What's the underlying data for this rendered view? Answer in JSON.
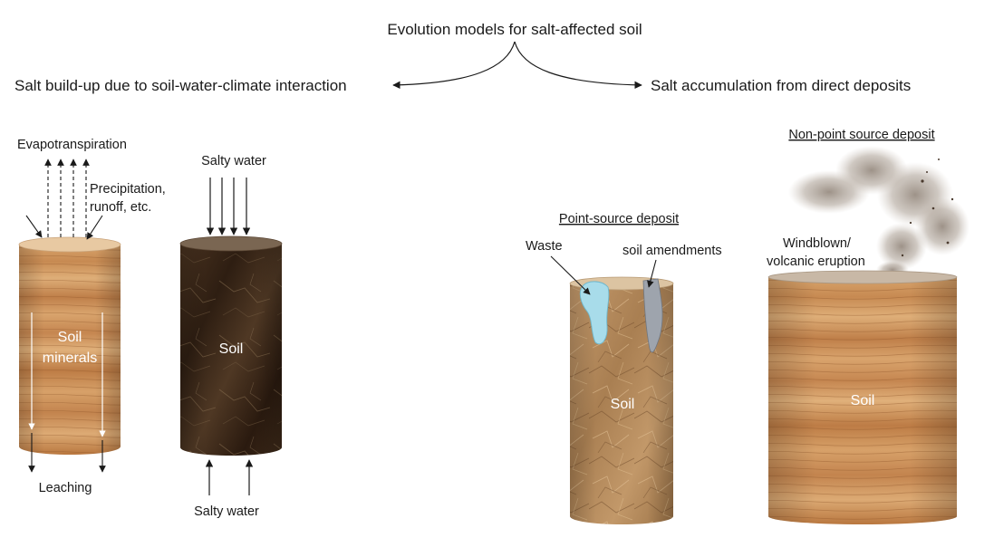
{
  "title": "Evolution models for salt-affected soil",
  "left_branch": "Salt build-up due to soil-water-climate interaction",
  "right_branch": "Salt accumulation from direct deposits",
  "cylinder1": {
    "top_label": "Evapotranspiration",
    "side_label_line1": "Precipitation,",
    "side_label_line2": "runoff, etc.",
    "inner_label_line1": "Soil",
    "inner_label_line2": "minerals",
    "bottom_label": "Leaching"
  },
  "cylinder2": {
    "top_label": "Salty water",
    "inner_label": "Soil",
    "bottom_label": "Salty water"
  },
  "cylinder3": {
    "heading": "Point-source deposit",
    "waste_label": "Waste",
    "amendments_label": "soil amendments",
    "inner_label": "Soil"
  },
  "cylinder4": {
    "heading": "Non-point source deposit",
    "deposit_label_line1": "Windblown/",
    "deposit_label_line2": "volcanic eruption",
    "inner_label": "Soil"
  },
  "colors": {
    "wood_light": "#d9a46a",
    "wood_dark": "#a8683a",
    "dark_soil": "#3e2a1a",
    "crumpled_paper": "#b48a5c",
    "waste_blue": "#a8dcea",
    "amendment_gray": "#9ea4ad",
    "dust": "#9a8e82"
  }
}
